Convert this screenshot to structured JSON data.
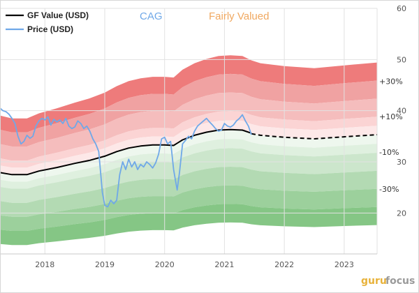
{
  "chart_data": {
    "type": "area",
    "ticker": "CAG",
    "valuation": "Fairly Valued",
    "x_unit": "year",
    "y_axis_position": "right",
    "ylim": [
      12,
      60
    ],
    "xlim": [
      2017.25,
      2023.55
    ],
    "y_ticks": [
      20,
      30,
      40,
      50,
      60
    ],
    "x_ticks": [
      {
        "value": 2018,
        "label": "2018"
      },
      {
        "value": 2019,
        "label": "2019"
      },
      {
        "value": 2020,
        "label": "2020"
      },
      {
        "value": 2021,
        "label": "2021"
      },
      {
        "value": 2022,
        "label": "2022"
      },
      {
        "value": 2023,
        "label": "2023"
      }
    ],
    "grid": {
      "horizontal": true,
      "vertical": true
    },
    "legend": {
      "placement": "top-left",
      "entries": [
        {
          "label": "GF Value (USD)",
          "color": "#000000"
        },
        {
          "label": "Price (USD)",
          "color": "#6fa8e8"
        }
      ]
    },
    "band_labels": [
      "+30%",
      "+10%",
      "-10%",
      "-30%"
    ],
    "band_multipliers": [
      1.4,
      1.3,
      1.2,
      1.1,
      1.05,
      1.0,
      0.95,
      0.9,
      0.8,
      0.7,
      0.6,
      0.5
    ],
    "band_colors": [
      "#ee7b7b",
      "#f0a2a2",
      "#f5bdbd",
      "#fbd4d4",
      "#fde8e8",
      "#eef7ee",
      "#dff0df",
      "#cce6cc",
      "#b3dab3",
      "#9cd09c",
      "#85c685"
    ],
    "gf_value": {
      "x": [
        2017.25,
        2017.45,
        2017.7,
        2017.9,
        2018.2,
        2018.5,
        2018.75,
        2019.0,
        2019.2,
        2019.4,
        2019.6,
        2019.8,
        2020.0,
        2020.15,
        2020.3,
        2020.5,
        2020.7,
        2020.9,
        2021.1,
        2021.3,
        2021.45
      ],
      "y": [
        27.9,
        27.5,
        27.5,
        28.2,
        28.9,
        29.7,
        30.3,
        31.1,
        32.0,
        32.7,
        33.1,
        33.3,
        33.3,
        33.2,
        34.3,
        35.2,
        35.8,
        36.2,
        36.3,
        36.2,
        35.6
      ]
    },
    "gf_value_forecast": {
      "style": "dashed",
      "x": [
        2021.45,
        2021.6,
        2022.0,
        2022.5,
        2023.0,
        2023.55
      ],
      "y": [
        35.5,
        35.2,
        34.8,
        34.5,
        34.9,
        35.3
      ]
    },
    "price": {
      "x": [
        2017.25,
        2017.3,
        2017.35,
        2017.4,
        2017.45,
        2017.5,
        2017.55,
        2017.6,
        2017.65,
        2017.7,
        2017.75,
        2017.8,
        2017.85,
        2017.9,
        2017.95,
        2018.0,
        2018.05,
        2018.1,
        2018.15,
        2018.2,
        2018.25,
        2018.3,
        2018.35,
        2018.4,
        2018.45,
        2018.5,
        2018.55,
        2018.6,
        2018.65,
        2018.7,
        2018.75,
        2018.8,
        2018.85,
        2018.9,
        2018.93,
        2018.96,
        2019.0,
        2019.05,
        2019.1,
        2019.15,
        2019.2,
        2019.25,
        2019.3,
        2019.35,
        2019.4,
        2019.45,
        2019.5,
        2019.55,
        2019.6,
        2019.65,
        2019.7,
        2019.75,
        2019.8,
        2019.85,
        2019.9,
        2019.95,
        2020.0,
        2020.05,
        2020.1,
        2020.15,
        2020.18,
        2020.21,
        2020.25,
        2020.3,
        2020.35,
        2020.4,
        2020.45,
        2020.5,
        2020.55,
        2020.6,
        2020.65,
        2020.7,
        2020.75,
        2020.8,
        2020.85,
        2020.9,
        2020.95,
        2021.0,
        2021.05,
        2021.1,
        2021.15,
        2021.2,
        2021.25,
        2021.3,
        2021.35,
        2021.4,
        2021.45
      ],
      "y": [
        40.5,
        40.0,
        39.8,
        39.3,
        38.5,
        37.5,
        35.0,
        33.5,
        34.0,
        35.2,
        34.6,
        35.0,
        37.0,
        38.0,
        38.5,
        38.2,
        38.8,
        37.2,
        38.3,
        37.8,
        38.2,
        37.5,
        38.5,
        37.0,
        36.5,
        36.8,
        38.0,
        37.5,
        36.5,
        37.0,
        36.0,
        34.5,
        33.5,
        32.0,
        28.0,
        24.0,
        21.5,
        21.2,
        22.5,
        21.8,
        22.5,
        27.5,
        30.0,
        28.5,
        30.5,
        29.0,
        30.0,
        28.5,
        29.5,
        29.0,
        30.0,
        29.5,
        28.8,
        29.8,
        31.5,
        34.5,
        34.8,
        33.5,
        34.0,
        28.5,
        26.5,
        24.5,
        28.0,
        33.5,
        34.2,
        35.0,
        34.5,
        36.0,
        37.0,
        37.5,
        38.0,
        38.5,
        37.8,
        37.2,
        36.5,
        36.0,
        36.2,
        37.5,
        37.0,
        36.8,
        37.2,
        38.0,
        38.5,
        39.2,
        38.0,
        37.0,
        35.3
      ]
    }
  },
  "watermark": {
    "part1": "guru",
    "part2": "focus"
  }
}
